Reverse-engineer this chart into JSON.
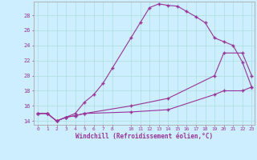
{
  "xlabel": "Windchill (Refroidissement éolien,°C)",
  "bg_color": "#cceeff",
  "line_color": "#993399",
  "grid_color": "#aadddd",
  "spine_color": "#aaaaaa",
  "xlim": [
    -0.5,
    23.3
  ],
  "ylim": [
    13.5,
    29.8
  ],
  "xticks": [
    0,
    1,
    2,
    3,
    4,
    5,
    6,
    7,
    8,
    10,
    11,
    12,
    13,
    14,
    15,
    16,
    17,
    18,
    19,
    20,
    21,
    22,
    23
  ],
  "yticks": [
    14,
    16,
    18,
    20,
    22,
    24,
    26,
    28
  ],
  "line1_x": [
    0,
    1,
    2,
    3,
    4,
    5,
    6,
    7,
    8,
    10,
    11,
    12,
    13,
    14,
    15,
    16,
    17,
    18,
    19,
    20,
    21,
    22,
    23
  ],
  "line1_y": [
    15,
    15,
    14,
    14.5,
    15,
    16.5,
    17.5,
    19,
    21,
    25,
    27,
    29,
    29.5,
    29.3,
    29.2,
    28.5,
    27.8,
    27,
    25,
    24.5,
    24,
    21.8,
    18.5
  ],
  "line2_x": [
    0,
    1,
    2,
    3,
    4,
    5,
    10,
    14,
    19,
    20,
    22,
    23
  ],
  "line2_y": [
    15,
    15,
    14,
    14.5,
    14.7,
    15,
    16,
    17,
    20,
    23,
    23,
    20
  ],
  "line3_x": [
    0,
    1,
    2,
    3,
    4,
    5,
    10,
    14,
    19,
    20,
    22,
    23
  ],
  "line3_y": [
    15,
    15,
    14,
    14.5,
    14.7,
    15,
    15.2,
    15.5,
    17.5,
    18,
    18,
    18.5
  ]
}
